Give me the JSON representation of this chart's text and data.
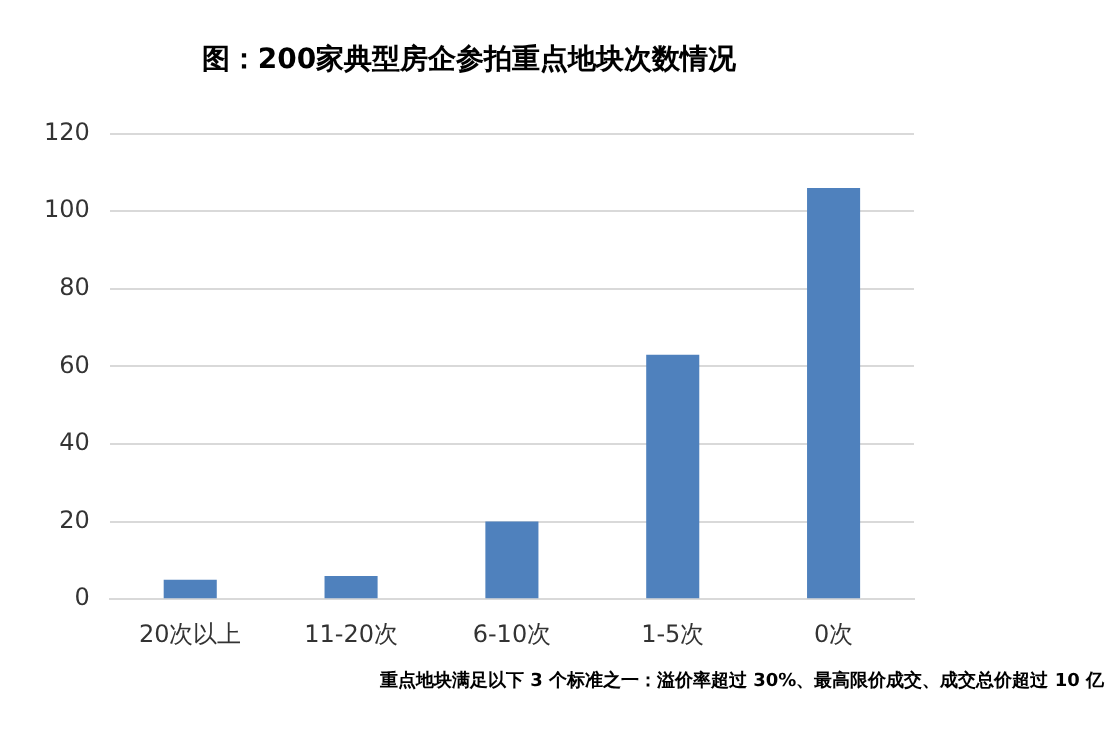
{
  "chart_data": {
    "type": "bar",
    "title": "图：200家典型房企参拍重点地块次数情况",
    "categories": [
      "20次以上",
      "11-20次",
      "6-10次",
      "1-5次",
      "0次"
    ],
    "values": [
      5,
      6,
      20,
      63,
      106
    ],
    "color": "#4f81bd",
    "ylim": [
      0,
      120
    ],
    "yticks": [
      0,
      20,
      40,
      60,
      80,
      100,
      120
    ],
    "grid": "y",
    "annotations": [
      "重点地块满足以下 3 个标准之一：溢价率超过 30%、最高限价成交、成交总价超过 10 亿"
    ]
  }
}
